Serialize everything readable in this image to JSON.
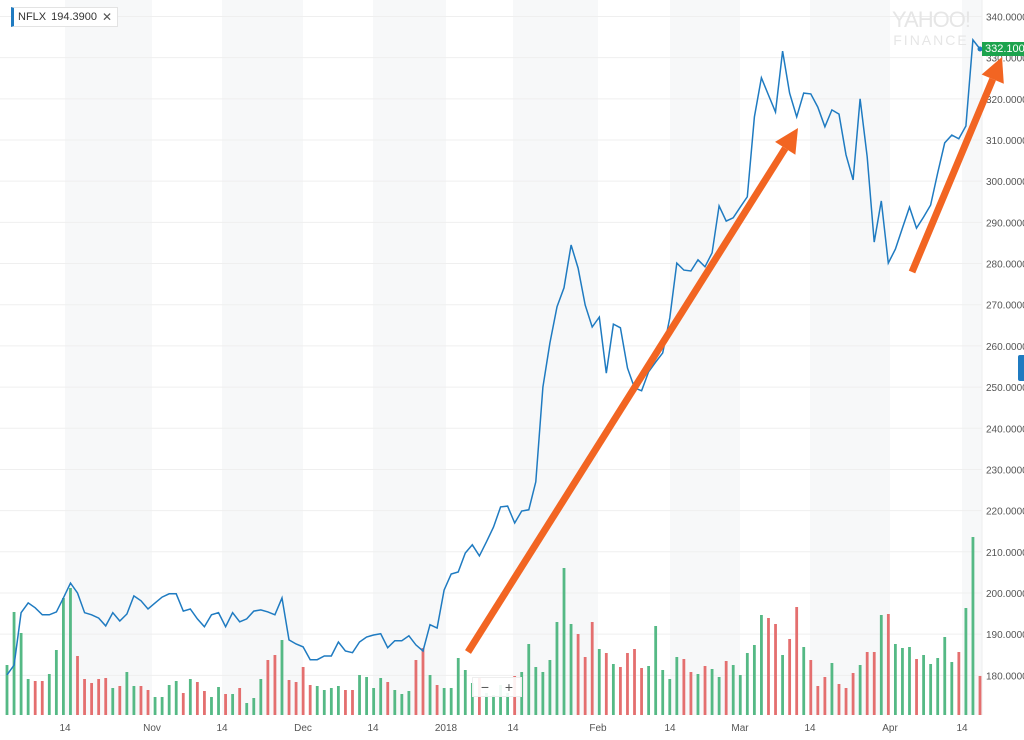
{
  "legend": {
    "symbol": "NFLX",
    "value": "194.3900",
    "close_icon": "close-icon"
  },
  "watermark": {
    "line1": "YAHOO!",
    "line2": "FINANCE"
  },
  "last_price_tag": "332.100",
  "zoom_controls": {
    "minus": "−",
    "plus": "+"
  },
  "colors": {
    "line": "#1f7bc1",
    "up": "#55b985",
    "down": "#e46f6f",
    "arrow": "#f26522",
    "tag": "#1ca34d",
    "band": "#f7f8f9",
    "grid": "#efefef"
  },
  "chart_data": {
    "type": "line",
    "title": "",
    "xlabel": "",
    "ylabel": "",
    "ylim": [
      172,
      342
    ],
    "y_ticks": [
      "340.0000",
      "330.0000",
      "320.0000",
      "310.0000",
      "300.0000",
      "290.0000",
      "280.0000",
      "270.0000",
      "260.0000",
      "250.0000",
      "240.0000",
      "230.0000",
      "220.0000",
      "210.0000",
      "200.0000",
      "190.0000",
      "180.0000"
    ],
    "x_ticks": [
      "14",
      "Nov",
      "14",
      "Dec",
      "14",
      "2018",
      "14",
      "Feb",
      "14",
      "Mar",
      "14",
      "Apr",
      "14"
    ],
    "grid": true,
    "close": [
      180.1,
      182.5,
      195.2,
      197.6,
      196.4,
      194.7,
      194.7,
      195.4,
      198.8,
      202.4,
      200.0,
      195.2,
      194.7,
      193.9,
      192.0,
      195.2,
      193.2,
      194.9,
      199.3,
      198.1,
      196.1,
      197.6,
      199.0,
      199.8,
      199.8,
      195.6,
      196.1,
      193.7,
      191.8,
      194.7,
      195.2,
      191.8,
      195.2,
      193.0,
      193.7,
      195.6,
      195.9,
      195.4,
      194.7,
      198.8,
      188.6,
      187.6,
      186.9,
      183.8,
      183.8,
      184.7,
      184.7,
      188.1,
      185.9,
      185.5,
      188.1,
      189.3,
      189.8,
      190.1,
      186.7,
      188.4,
      188.4,
      189.6,
      187.4,
      185.9,
      192.3,
      191.5,
      200.7,
      204.6,
      205.1,
      209.7,
      211.7,
      209.0,
      212.4,
      216.0,
      220.9,
      221.1,
      217.0,
      219.9,
      220.2,
      227.0,
      250.0,
      260.7,
      269.5,
      274.1,
      284.5,
      278.9,
      269.9,
      264.6,
      267.0,
      253.4,
      265.3,
      264.4,
      254.6,
      249.8,
      249.1,
      253.7,
      256.1,
      258.3,
      266.8,
      280.1,
      278.4,
      278.2,
      280.9,
      279.2,
      282.6,
      294.0,
      290.3,
      291.1,
      293.7,
      296.2,
      315.6,
      325.1,
      320.9,
      316.8,
      331.6,
      321.4,
      315.6,
      321.4,
      321.2,
      318.0,
      313.2,
      317.3,
      316.3,
      306.4,
      300.3,
      320.0,
      305.9,
      285.2,
      295.2,
      280.1,
      283.5,
      288.6,
      293.7,
      288.6,
      291.3,
      294.2,
      302.0,
      309.3,
      311.2,
      310.3,
      313.4,
      334.3,
      332.1
    ],
    "volume_relative": [
      50,
      103,
      82,
      36,
      34,
      34,
      41,
      65,
      117,
      127,
      59,
      36,
      32,
      36,
      37,
      27,
      29,
      43,
      29,
      29,
      25,
      18,
      18,
      30,
      34,
      22,
      36,
      33,
      24,
      18,
      28,
      21,
      21,
      27,
      12,
      17,
      36,
      55,
      60,
      75,
      35,
      33,
      48,
      30,
      29,
      25,
      27,
      29,
      25,
      25,
      40,
      38,
      27,
      37,
      33,
      25,
      21,
      24,
      55,
      67,
      40,
      30,
      27,
      27,
      57,
      45,
      32,
      37,
      22,
      20,
      30,
      22,
      39,
      43,
      71,
      48,
      43,
      55,
      93,
      147,
      91,
      81,
      58,
      93,
      66,
      62,
      51,
      48,
      62,
      66,
      47,
      49,
      89,
      45,
      36,
      58,
      56,
      43,
      41,
      49,
      46,
      38,
      54,
      50,
      40,
      62,
      70,
      100,
      97,
      91,
      60,
      76,
      108,
      68,
      55,
      29,
      38,
      52,
      31,
      27,
      42,
      50,
      63,
      63,
      100,
      101,
      71,
      67,
      68,
      56,
      60,
      51,
      57,
      78,
      53,
      63,
      107,
      178,
      39
    ],
    "annotations": [
      "uptrend-arrow",
      "uptrend-arrow",
      "uptrend-arrow"
    ]
  }
}
